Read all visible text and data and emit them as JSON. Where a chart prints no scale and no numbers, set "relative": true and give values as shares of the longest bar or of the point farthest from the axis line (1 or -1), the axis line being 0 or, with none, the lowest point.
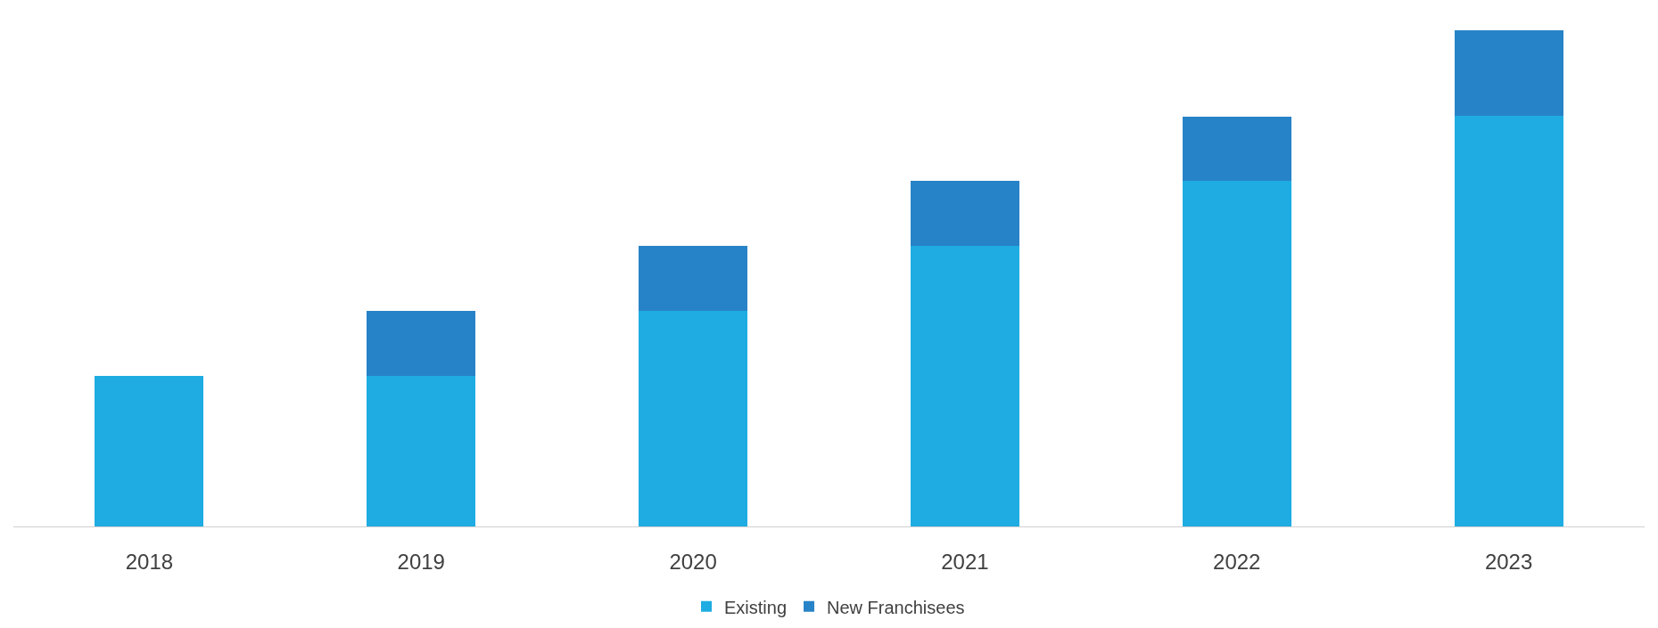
{
  "chart_data": {
    "type": "bar",
    "stacked": true,
    "relative": true,
    "categories": [
      "2018",
      "2019",
      "2020",
      "2021",
      "2022",
      "2023"
    ],
    "series": [
      {
        "name": "Existing",
        "color": "#1eace2",
        "values": [
          0.303,
          0.303,
          0.434,
          0.566,
          0.697,
          0.828
        ]
      },
      {
        "name": "New Franchisees",
        "color": "#2783c7",
        "values": [
          null,
          0.131,
          0.131,
          0.131,
          0.129,
          0.172
        ]
      }
    ],
    "legend": "bottom"
  }
}
